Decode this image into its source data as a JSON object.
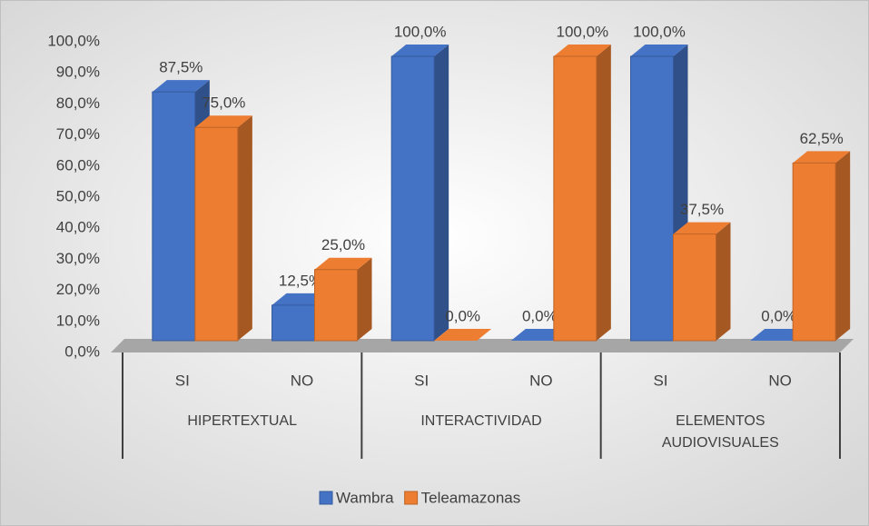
{
  "chart_data": {
    "type": "bar3d",
    "categories": [
      "SI",
      "NO",
      "SI",
      "NO",
      "SI",
      "NO"
    ],
    "groups": [
      {
        "name": "HIPERTEXTUAL",
        "span": 2
      },
      {
        "name": "INTERACTIVIDAD",
        "span": 2
      },
      {
        "name": "ELEMENTOS AUDIOVISUALES",
        "span": 2
      }
    ],
    "series": [
      {
        "name": "Wambra",
        "color": "#4472c4",
        "values": [
          87.5,
          12.5,
          100,
          0,
          100,
          0
        ],
        "value_labels": [
          "87,5%",
          "12,5%",
          "100,0%",
          "0,0%",
          "100,0%",
          "0,0%"
        ]
      },
      {
        "name": "Teleamazonas",
        "color": "#ed7d31",
        "values": [
          75,
          25,
          0,
          100,
          37.5,
          62.5
        ],
        "value_labels": [
          "75,0%",
          "25,0%",
          "0,0%",
          "100,0%",
          "37,5%",
          "62,5%"
        ]
      }
    ],
    "ylim": [
      0,
      100
    ],
    "yticks": [
      {
        "value": 0,
        "label": "0,0%"
      },
      {
        "value": 10,
        "label": "10,0%"
      },
      {
        "value": 20,
        "label": "20,0%"
      },
      {
        "value": 30,
        "label": "30,0%"
      },
      {
        "value": 40,
        "label": "40,0%"
      },
      {
        "value": 50,
        "label": "50,0%"
      },
      {
        "value": 60,
        "label": "60,0%"
      },
      {
        "value": 70,
        "label": "70,0%"
      },
      {
        "value": 80,
        "label": "80,0%"
      },
      {
        "value": 90,
        "label": "90,0%"
      },
      {
        "value": 100,
        "label": "100,0%"
      }
    ],
    "legend": "bottom"
  }
}
